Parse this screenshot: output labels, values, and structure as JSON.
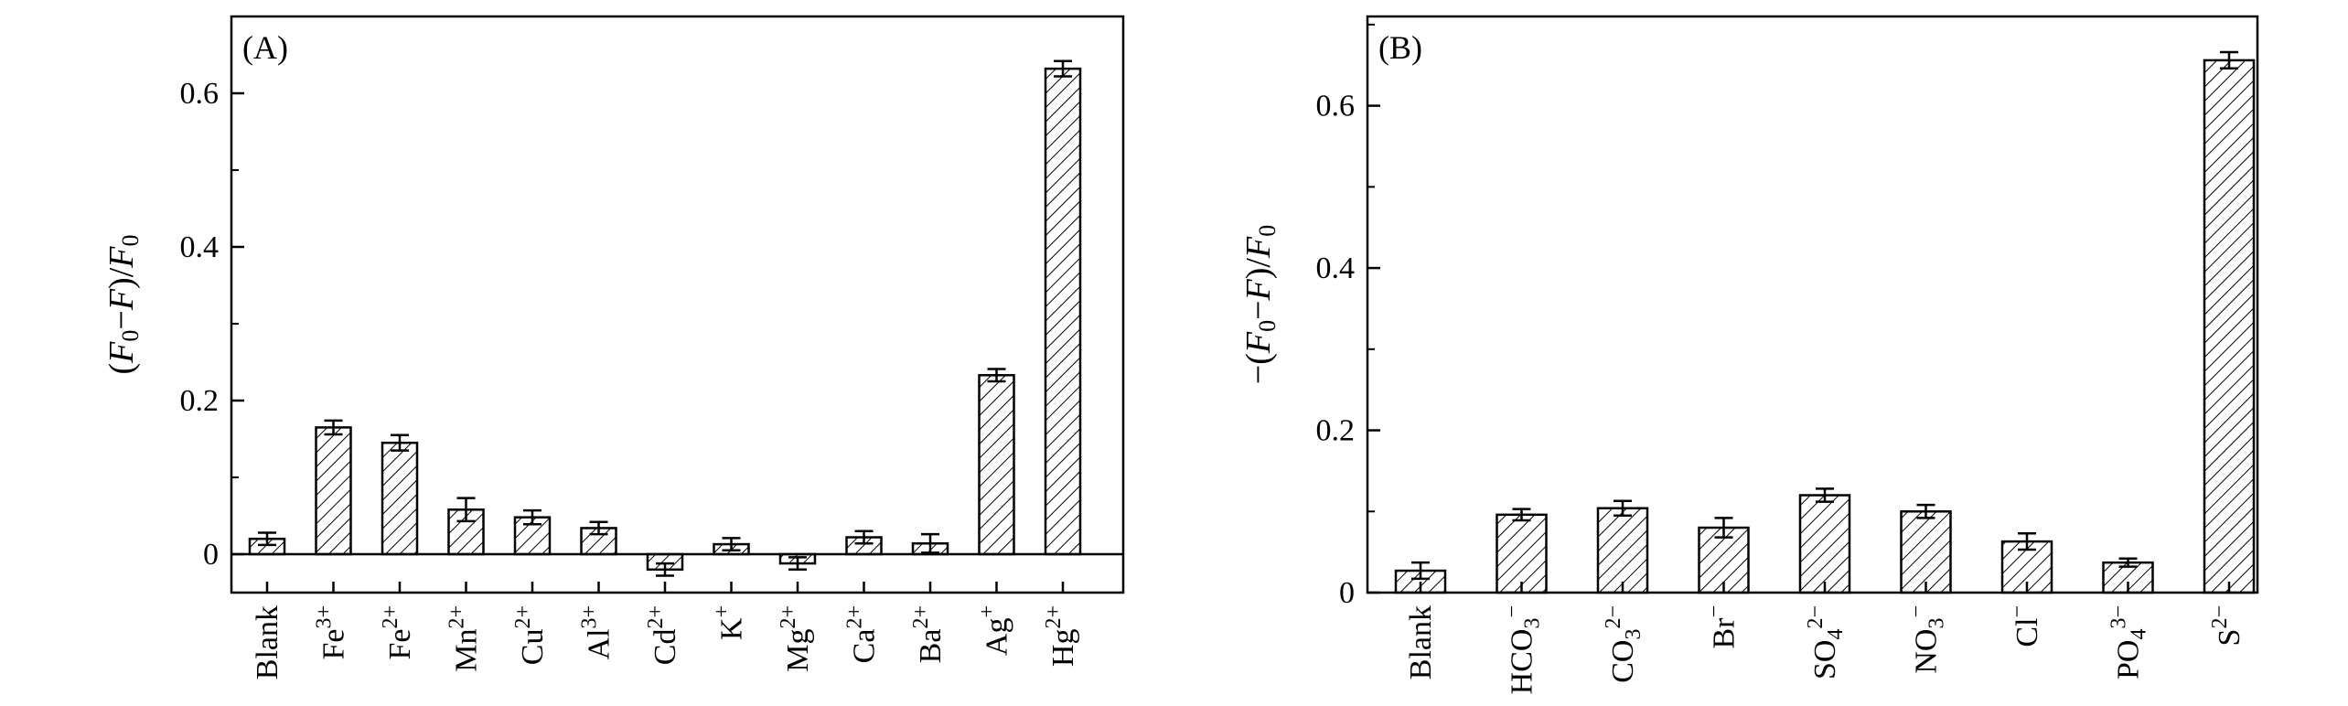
{
  "chart_data": [
    {
      "type": "bar",
      "panel_label": "(A)",
      "ylabel": "(F0−F)/F0",
      "ylim": [
        -0.05,
        0.7
      ],
      "yticks": [
        {
          "value": 0,
          "label": "0"
        },
        {
          "value": 0.2,
          "label": "0.2"
        },
        {
          "value": 0.4,
          "label": "0.4"
        },
        {
          "value": 0.6,
          "label": "0.6"
        }
      ],
      "zero_line": true,
      "fill": "hatched",
      "categories": [
        {
          "base": "Blank",
          "sup": "",
          "sub": ""
        },
        {
          "base": "Fe",
          "sup": "3+",
          "sub": ""
        },
        {
          "base": "Fe",
          "sup": "2+",
          "sub": ""
        },
        {
          "base": "Mn",
          "sup": "2+",
          "sub": ""
        },
        {
          "base": "Cu",
          "sup": "2+",
          "sub": ""
        },
        {
          "base": "Al",
          "sup": "3+",
          "sub": ""
        },
        {
          "base": "Cd",
          "sup": "2+",
          "sub": ""
        },
        {
          "base": "K",
          "sup": "+",
          "sub": ""
        },
        {
          "base": "Mg",
          "sup": "2+",
          "sub": ""
        },
        {
          "base": "Ca",
          "sup": "2+",
          "sub": ""
        },
        {
          "base": "Ba",
          "sup": "2+",
          "sub": ""
        },
        {
          "base": "Ag",
          "sup": "+",
          "sub": ""
        },
        {
          "base": "Hg",
          "sup": "2+",
          "sub": ""
        }
      ],
      "values": [
        0.02,
        0.165,
        0.145,
        0.058,
        0.048,
        0.034,
        -0.02,
        0.013,
        -0.012,
        0.022,
        0.014,
        0.233,
        0.632
      ],
      "errors": [
        0.008,
        0.009,
        0.01,
        0.015,
        0.009,
        0.008,
        0.008,
        0.008,
        0.008,
        0.008,
        0.012,
        0.008,
        0.01
      ]
    },
    {
      "type": "bar",
      "panel_label": "(B)",
      "ylabel": "−(F0−F)/F0",
      "ylim": [
        0,
        0.71
      ],
      "yticks": [
        {
          "value": 0,
          "label": "0"
        },
        {
          "value": 0.2,
          "label": "0.2"
        },
        {
          "value": 0.4,
          "label": "0.4"
        },
        {
          "value": 0.6,
          "label": "0.6"
        }
      ],
      "zero_line": false,
      "fill": "hatched",
      "categories": [
        {
          "base": "Blank",
          "sup": "",
          "sub": ""
        },
        {
          "base": "HCO",
          "sup": "−",
          "sub": "3"
        },
        {
          "base": "CO",
          "sup": "2−",
          "sub": "3"
        },
        {
          "base": "Br",
          "sup": "−",
          "sub": ""
        },
        {
          "base": "SO",
          "sup": "2−",
          "sub": "4"
        },
        {
          "base": "NO",
          "sup": "−",
          "sub": "3"
        },
        {
          "base": "Cl",
          "sup": "−",
          "sub": ""
        },
        {
          "base": "PO",
          "sup": "3−",
          "sub": "4"
        },
        {
          "base": "S",
          "sup": "2−",
          "sub": ""
        }
      ],
      "values": [
        0.027,
        0.096,
        0.104,
        0.08,
        0.12,
        0.1,
        0.063,
        0.037,
        0.656
      ],
      "errors": [
        0.01,
        0.007,
        0.009,
        0.012,
        0.008,
        0.008,
        0.01,
        0.005,
        0.01
      ]
    }
  ]
}
